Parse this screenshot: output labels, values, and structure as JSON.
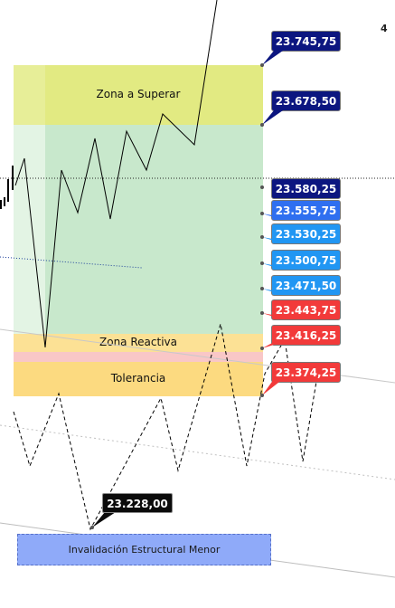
{
  "corner_label": "4",
  "zones": {
    "superar": {
      "label": "Zona a Superar",
      "color": "#e2ea82"
    },
    "main_band": {
      "color": "#c8e8cc"
    },
    "reactiva": {
      "label": "Zona Reactiva",
      "color": "#fce195"
    },
    "tolerancia_gap": {
      "color": "#f9c7c7"
    },
    "tolerancia": {
      "label": "Tolerancia",
      "color": "#fcda80"
    }
  },
  "price_tags": [
    {
      "label": "23.745,75",
      "color": "#0c1680"
    },
    {
      "label": "23.678,50",
      "color": "#0c1680"
    },
    {
      "label": "23.580,25",
      "color": "#0c1680"
    },
    {
      "label": "23.555,75",
      "color": "#2f6ff0"
    },
    {
      "label": "23.530,25",
      "color": "#2196f3"
    },
    {
      "label": "23.500,75",
      "color": "#2196f3"
    },
    {
      "label": "23.471,50",
      "color": "#2196f3"
    },
    {
      "label": "23.443,75",
      "color": "#f23a3a"
    },
    {
      "label": "23.416,25",
      "color": "#f23a3a"
    },
    {
      "label": "23.374,25",
      "color": "#f23a3a"
    }
  ],
  "low_callout": {
    "label": "23.228,00"
  },
  "invalidation": {
    "label": "Invalidación Estructural Menor",
    "color": "#8faaf9"
  }
}
